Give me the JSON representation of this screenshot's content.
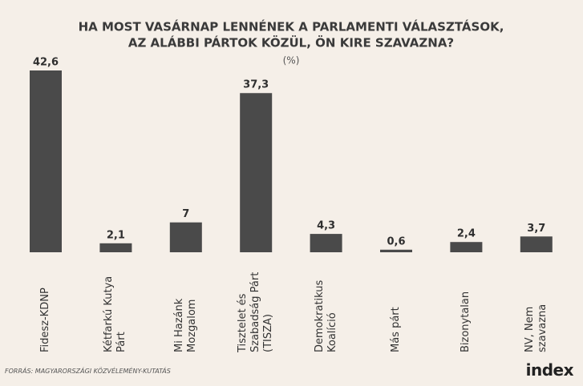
{
  "chart_data": {
    "type": "bar",
    "title": "HA MOST VASÁRNAP LENNÉNEK A PARLAMENTI VÁLASZTÁSOK,",
    "title_line2": "AZ ALÁBBI PÁRTOK KÖZÜL, ÖN KIRE SZAVAZNA?",
    "subtitle": "(%)",
    "categories": [
      "Fidesz-KDNP",
      "Kétfarkú Kutya Párt",
      "Mi Hazánk Mozgalom",
      "Tisztelet és Szabadság Párt (TISZA)",
      "Demokratikus Koalíció",
      "Más párt",
      "Bizonytalan",
      "NV, Nem szavazna"
    ],
    "values": [
      42.6,
      2.1,
      7,
      37.3,
      4.3,
      0.6,
      2.4,
      3.7
    ],
    "value_labels": [
      "42,6",
      "2,1",
      "7",
      "37,3",
      "4,3",
      "0,6",
      "2,4",
      "3,7"
    ],
    "color": "#4a4a4a",
    "source": "FORRÁS: MAGYARORSZÁGI KÖZVÉLEMÉNY-KUTATÁS",
    "logo": "index"
  }
}
